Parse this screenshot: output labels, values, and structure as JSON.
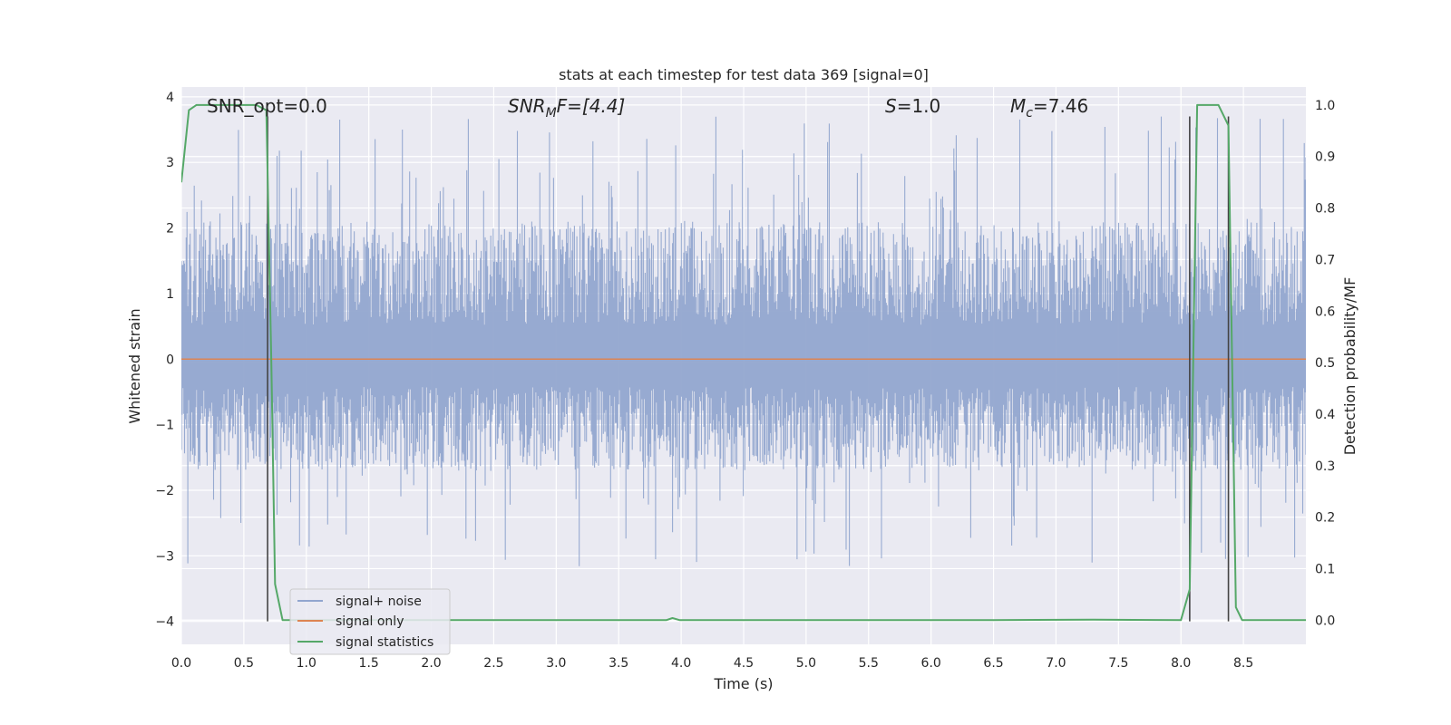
{
  "chart_data": {
    "type": "line",
    "title": "stats at each timestep for test data 369 [signal=0]",
    "xlabel": "Time (s)",
    "ylabel": "Whitened strain",
    "y2label": "Detection probability/MF",
    "xlim": [
      0.0,
      9.0
    ],
    "ylim": [
      -4.35,
      4.15
    ],
    "y2lim": [
      -0.047,
      1.035
    ],
    "x_ticks": [
      0.0,
      0.5,
      1.0,
      1.5,
      2.0,
      2.5,
      3.0,
      3.5,
      4.0,
      4.5,
      5.0,
      5.5,
      6.0,
      6.5,
      7.0,
      7.5,
      8.0,
      8.5
    ],
    "x_tick_labels": [
      "0.0",
      "0.5",
      "1.0",
      "1.5",
      "2.0",
      "2.5",
      "3.0",
      "3.5",
      "4.0",
      "4.5",
      "5.0",
      "5.5",
      "6.0",
      "6.5",
      "7.0",
      "7.5",
      "8.0",
      "8.5"
    ],
    "y_ticks": [
      4,
      3,
      2,
      1,
      0,
      -1,
      -2,
      -3,
      -4
    ],
    "y_tick_labels": [
      "4",
      "3",
      "2",
      "1",
      "0",
      "−1",
      "−2",
      "−3",
      "−4"
    ],
    "y2_ticks": [
      1.0,
      0.9,
      0.8,
      0.7,
      0.6,
      0.5,
      0.4,
      0.3,
      0.2,
      0.1,
      0.0
    ],
    "y2_tick_labels": [
      "1.0",
      "0.9",
      "0.8",
      "0.7",
      "0.6",
      "0.5",
      "0.4",
      "0.3",
      "0.2",
      "0.1",
      "0.0"
    ],
    "grid": true,
    "legend_position": "lower-left",
    "annotations": {
      "snr_opt": "SNR_opt=0.0",
      "snr_mf_prefix": "SNR",
      "snr_mf_sub": "M",
      "snr_mf_suffix": "F=[4.4]",
      "s_var": "S",
      "s_value": "=1.0",
      "mc_var": "M",
      "mc_sub": "c",
      "mc_value": "=7.46"
    },
    "series": [
      {
        "name": "signal+ noise",
        "color": "#92a6cf",
        "noise_band": [
          -1.7,
          2.1
        ],
        "noise_extremes": [
          -3.2,
          3.7
        ]
      },
      {
        "name": "signal only",
        "color": "#dd8452",
        "x": [
          0.0,
          9.0
        ],
        "y": [
          0.0,
          0.0
        ]
      },
      {
        "name": "signal statistics",
        "color": "#55a868",
        "axis": "secondary",
        "x": [
          0.0,
          0.06,
          0.12,
          0.2,
          0.4,
          0.6,
          0.68,
          0.72,
          0.75,
          0.81,
          1.0,
          2.0,
          3.0,
          3.88,
          3.93,
          3.99,
          4.5,
          5.5,
          6.5,
          7.3,
          8.0,
          8.07,
          8.13,
          8.2,
          8.3,
          8.38,
          8.44,
          8.49,
          8.6,
          9.0
        ],
        "y": [
          0.85,
          0.99,
          1.0,
          1.0,
          1.0,
          1.0,
          0.99,
          0.5,
          0.07,
          0.0,
          0.0,
          0.0,
          0.0,
          0.0,
          0.004,
          0.0,
          0.0,
          0.0,
          0.0,
          0.001,
          0.0,
          0.06,
          1.0,
          1.0,
          1.0,
          0.96,
          0.025,
          0.0,
          0.0,
          0.0
        ]
      }
    ],
    "vertical_markers": {
      "color": "#444444",
      "x": [
        0.69,
        8.07,
        8.38
      ],
      "y_range": [
        -4.0,
        3.7
      ]
    }
  }
}
